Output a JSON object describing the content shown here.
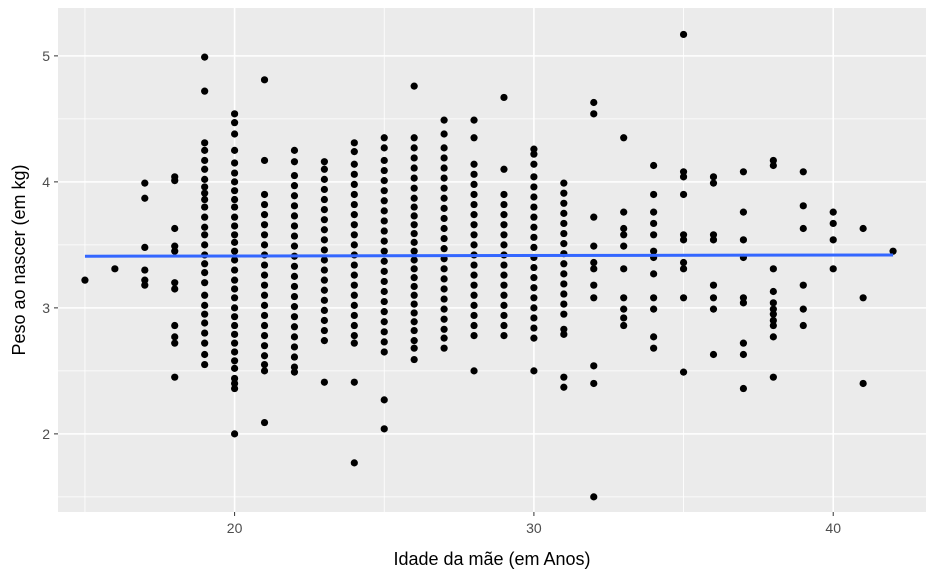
{
  "chart_data": {
    "type": "scatter",
    "xlabel": "Idade da mãe (em Anos)",
    "ylabel": "Peso ao nascer (em kg)",
    "xlim": [
      14.1,
      43.1
    ],
    "ylim": [
      1.38,
      5.38
    ],
    "x_ticks": [
      20,
      30,
      40
    ],
    "y_ticks": [
      2,
      3,
      4,
      5
    ],
    "x_tick_labels": [
      "20",
      "30",
      "40"
    ],
    "y_tick_labels": [
      "2",
      "3",
      "4",
      "5"
    ],
    "grid": true,
    "legend": "none",
    "panel_color": "#EBEBEB",
    "grid_color": "#FFFFFF",
    "point_color": "#000000",
    "trend_color": "#3366FF",
    "trend_line": {
      "x": [
        15,
        42
      ],
      "y": [
        3.41,
        3.42
      ]
    },
    "points_by_age": [
      {
        "x": 15,
        "y": [
          3.22
        ]
      },
      {
        "x": 16,
        "y": [
          3.31
        ]
      },
      {
        "x": 17,
        "y": [
          3.99,
          3.87,
          3.48,
          3.3,
          3.22,
          3.18
        ]
      },
      {
        "x": 18,
        "y": [
          4.04,
          4.01,
          3.63,
          3.49,
          3.45,
          3.2,
          3.15,
          2.86,
          2.77,
          2.72,
          2.45
        ]
      },
      {
        "x": 19,
        "y": [
          4.99,
          4.72,
          4.31,
          4.25,
          4.17,
          4.1,
          4.02,
          3.96,
          3.91,
          3.86,
          3.8,
          3.72,
          3.64,
          3.58,
          3.5,
          3.42,
          3.35,
          3.28,
          3.2,
          3.1,
          3.02,
          2.95,
          2.88,
          2.8,
          2.72,
          2.63,
          2.55
        ]
      },
      {
        "x": 20,
        "y": [
          4.54,
          4.47,
          4.38,
          4.25,
          4.15,
          4.07,
          4.0,
          3.93,
          3.86,
          3.8,
          3.72,
          3.65,
          3.58,
          3.52,
          3.45,
          3.38,
          3.3,
          3.22,
          3.15,
          3.08,
          3.0,
          2.93,
          2.86,
          2.79,
          2.72,
          2.65,
          2.58,
          2.52,
          2.44,
          2.4,
          2.36,
          2.0
        ]
      },
      {
        "x": 21,
        "y": [
          4.81,
          4.17,
          3.9,
          3.82,
          3.74,
          3.66,
          3.58,
          3.5,
          3.42,
          3.34,
          3.26,
          3.18,
          3.1,
          3.02,
          2.94,
          2.86,
          2.78,
          2.7,
          2.62,
          2.55,
          2.5,
          2.09
        ]
      },
      {
        "x": 22,
        "y": [
          4.25,
          4.16,
          4.05,
          3.97,
          3.89,
          3.81,
          3.73,
          3.65,
          3.57,
          3.49,
          3.41,
          3.33,
          3.25,
          3.17,
          3.09,
          3.01,
          2.93,
          2.85,
          2.77,
          2.69,
          2.61,
          2.53,
          2.49
        ]
      },
      {
        "x": 23,
        "y": [
          4.16,
          4.1,
          4.02,
          3.94,
          3.86,
          3.78,
          3.7,
          3.62,
          3.54,
          3.46,
          3.38,
          3.3,
          3.22,
          3.14,
          3.06,
          2.98,
          2.9,
          2.82,
          2.74,
          2.41
        ]
      },
      {
        "x": 24,
        "y": [
          4.31,
          4.24,
          4.14,
          4.06,
          3.98,
          3.9,
          3.82,
          3.74,
          3.66,
          3.58,
          3.5,
          3.42,
          3.34,
          3.26,
          3.18,
          3.1,
          3.02,
          2.94,
          2.86,
          2.78,
          2.72,
          2.41,
          1.77
        ]
      },
      {
        "x": 25,
        "y": [
          4.35,
          4.27,
          4.17,
          4.09,
          4.01,
          3.93,
          3.85,
          3.77,
          3.69,
          3.61,
          3.53,
          3.45,
          3.37,
          3.29,
          3.21,
          3.13,
          3.05,
          2.97,
          2.89,
          2.81,
          2.73,
          2.65,
          2.27,
          2.04
        ]
      },
      {
        "x": 26,
        "y": [
          4.76,
          4.35,
          4.27,
          4.19,
          4.11,
          4.03,
          3.95,
          3.87,
          3.8,
          3.73,
          3.66,
          3.59,
          3.52,
          3.45,
          3.38,
          3.31,
          3.24,
          3.17,
          3.1,
          3.03,
          2.96,
          2.89,
          2.82,
          2.74,
          2.68,
          2.59
        ]
      },
      {
        "x": 27,
        "y": [
          4.49,
          4.38,
          4.27,
          4.19,
          4.11,
          4.03,
          3.95,
          3.87,
          3.79,
          3.71,
          3.63,
          3.55,
          3.47,
          3.39,
          3.31,
          3.23,
          3.15,
          3.07,
          2.99,
          2.91,
          2.83,
          2.76,
          2.68
        ]
      },
      {
        "x": 28,
        "y": [
          4.49,
          4.35,
          4.14,
          4.06,
          3.98,
          3.9,
          3.82,
          3.74,
          3.66,
          3.58,
          3.5,
          3.42,
          3.34,
          3.26,
          3.18,
          3.1,
          3.02,
          2.94,
          2.86,
          2.78,
          2.5
        ]
      },
      {
        "x": 29,
        "y": [
          4.67,
          4.1,
          3.9,
          3.82,
          3.74,
          3.66,
          3.58,
          3.5,
          3.42,
          3.34,
          3.26,
          3.18,
          3.1,
          3.02,
          2.94,
          2.86,
          2.78
        ]
      },
      {
        "x": 30,
        "y": [
          4.26,
          4.22,
          4.14,
          4.04,
          3.96,
          3.88,
          3.8,
          3.72,
          3.64,
          3.56,
          3.48,
          3.4,
          3.32,
          3.24,
          3.16,
          3.08,
          3.0,
          2.92,
          2.84,
          2.76,
          2.5
        ]
      },
      {
        "x": 31,
        "y": [
          3.99,
          3.91,
          3.83,
          3.75,
          3.67,
          3.59,
          3.51,
          3.43,
          3.35,
          3.27,
          3.19,
          3.11,
          3.03,
          2.95,
          2.83,
          2.79,
          2.45,
          2.37
        ]
      },
      {
        "x": 32,
        "y": [
          4.63,
          4.54,
          3.72,
          3.49,
          3.36,
          3.31,
          3.18,
          3.08,
          2.54,
          2.4,
          1.5
        ]
      },
      {
        "x": 33,
        "y": [
          4.35,
          3.76,
          3.63,
          3.58,
          3.49,
          3.31,
          3.08,
          2.99,
          2.92,
          2.86
        ]
      },
      {
        "x": 34,
        "y": [
          4.13,
          3.9,
          3.76,
          3.67,
          3.58,
          3.45,
          3.4,
          3.27,
          3.08,
          2.99,
          2.77,
          2.68
        ]
      },
      {
        "x": 35,
        "y": [
          5.17,
          4.08,
          4.04,
          3.9,
          3.58,
          3.54,
          3.36,
          3.31,
          3.08,
          2.49
        ]
      },
      {
        "x": 36,
        "y": [
          4.04,
          3.99,
          3.58,
          3.54,
          3.18,
          3.08,
          2.99,
          2.63
        ]
      },
      {
        "x": 37,
        "y": [
          4.08,
          3.76,
          3.54,
          3.4,
          3.08,
          3.04,
          2.72,
          2.63,
          2.36
        ]
      },
      {
        "x": 38,
        "y": [
          4.17,
          4.13,
          3.31,
          3.13,
          3.04,
          2.99,
          2.95,
          2.9,
          2.86,
          2.77,
          2.45
        ]
      },
      {
        "x": 39,
        "y": [
          4.08,
          3.81,
          3.63,
          3.18,
          2.99,
          2.86
        ]
      },
      {
        "x": 40,
        "y": [
          3.76,
          3.67,
          3.54,
          3.31
        ]
      },
      {
        "x": 41,
        "y": [
          3.63,
          3.08,
          2.4
        ]
      },
      {
        "x": 42,
        "y": [
          3.45
        ]
      }
    ]
  }
}
